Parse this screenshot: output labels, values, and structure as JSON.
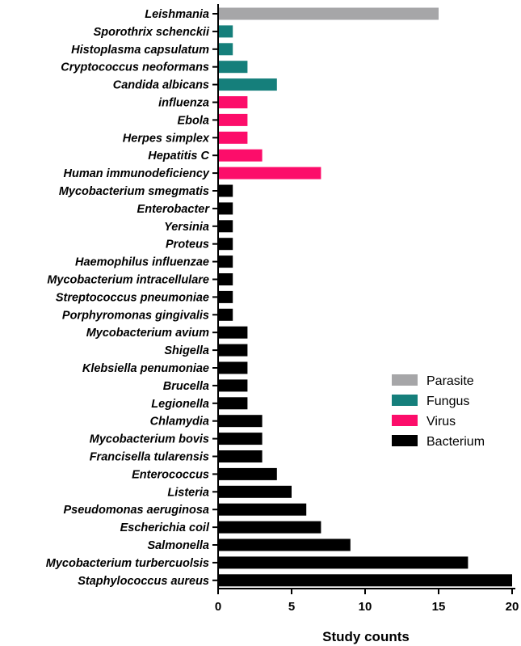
{
  "chart_data": {
    "type": "bar",
    "orientation": "horizontal",
    "xlabel": "Study counts",
    "ylabel": "",
    "xlim": [
      0,
      20
    ],
    "x_ticks": [
      "0",
      "5",
      "10",
      "15",
      "20"
    ],
    "x_tick_values": [
      0,
      5,
      10,
      15,
      20
    ],
    "grid": false,
    "legend_position": "right",
    "legend": [
      {
        "name": "Parasite",
        "color": "#a6a6a8"
      },
      {
        "name": "Fungus",
        "color": "#157f7b"
      },
      {
        "name": "Virus",
        "color": "#fc0d6a"
      },
      {
        "name": "Bacterium",
        "color": "#000000"
      }
    ],
    "bars": [
      {
        "label": "Leishmania",
        "value": 15,
        "group": "Parasite"
      },
      {
        "label": "Sporothrix schenckii",
        "value": 1,
        "group": "Fungus"
      },
      {
        "label": "Histoplasma capsulatum",
        "value": 1,
        "group": "Fungus"
      },
      {
        "label": "Cryptococcus neoformans",
        "value": 2,
        "group": "Fungus"
      },
      {
        "label": "Candida albicans",
        "value": 4,
        "group": "Fungus"
      },
      {
        "label": "influenza",
        "value": 2,
        "group": "Virus"
      },
      {
        "label": "Ebola",
        "value": 2,
        "group": "Virus"
      },
      {
        "label": "Herpes simplex",
        "value": 2,
        "group": "Virus"
      },
      {
        "label": "Hepatitis C",
        "value": 3,
        "group": "Virus"
      },
      {
        "label": "Human immunodeficiency",
        "value": 7,
        "group": "Virus"
      },
      {
        "label": "Mycobacterium smegmatis",
        "value": 1,
        "group": "Bacterium"
      },
      {
        "label": "Enterobacter",
        "value": 1,
        "group": "Bacterium"
      },
      {
        "label": "Yersinia",
        "value": 1,
        "group": "Bacterium"
      },
      {
        "label": "Proteus",
        "value": 1,
        "group": "Bacterium"
      },
      {
        "label": "Haemophilus influenzae",
        "value": 1,
        "group": "Bacterium"
      },
      {
        "label": "Mycobacterium intracellulare",
        "value": 1,
        "group": "Bacterium"
      },
      {
        "label": "Streptococcus pneumoniae",
        "value": 1,
        "group": "Bacterium"
      },
      {
        "label": "Porphyromonas gingivalis",
        "value": 1,
        "group": "Bacterium"
      },
      {
        "label": "Mycobacterium avium",
        "value": 2,
        "group": "Bacterium"
      },
      {
        "label": "Shigella",
        "value": 2,
        "group": "Bacterium"
      },
      {
        "label": "Klebsiella penumoniae",
        "value": 2,
        "group": "Bacterium"
      },
      {
        "label": "Brucella",
        "value": 2,
        "group": "Bacterium"
      },
      {
        "label": "Legionella",
        "value": 2,
        "group": "Bacterium"
      },
      {
        "label": "Chlamydia",
        "value": 3,
        "group": "Bacterium"
      },
      {
        "label": "Mycobacterium bovis",
        "value": 3,
        "group": "Bacterium"
      },
      {
        "label": "Francisella tularensis",
        "value": 3,
        "group": "Bacterium"
      },
      {
        "label": "Enterococcus",
        "value": 4,
        "group": "Bacterium"
      },
      {
        "label": "Listeria",
        "value": 5,
        "group": "Bacterium"
      },
      {
        "label": "Pseudomonas aeruginosa",
        "value": 6,
        "group": "Bacterium"
      },
      {
        "label": "Escherichia coil",
        "value": 7,
        "group": "Bacterium"
      },
      {
        "label": "Salmonella",
        "value": 9,
        "group": "Bacterium"
      },
      {
        "label": "Mycobacterium turbercuolsis",
        "value": 17,
        "group": "Bacterium"
      },
      {
        "label": "Staphylococcus aureus",
        "value": 20,
        "group": "Bacterium"
      }
    ]
  }
}
